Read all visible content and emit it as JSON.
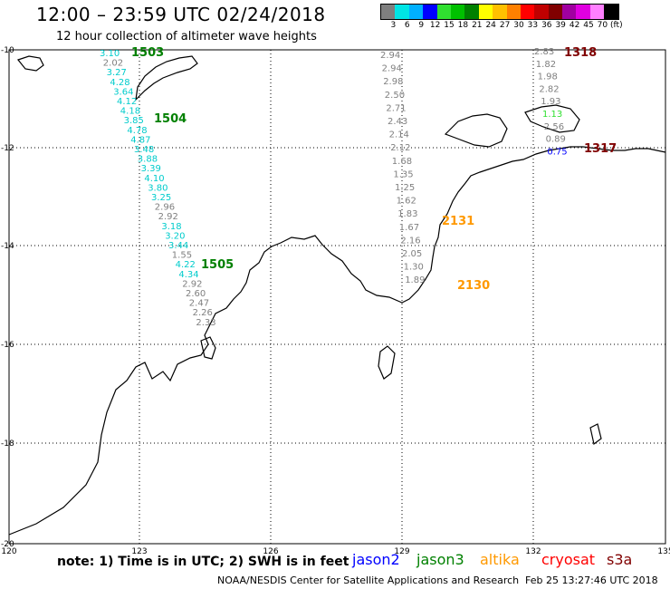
{
  "header": {
    "title": "12:00 – 23:59 UTC 02/24/2018",
    "subtitle": "12 hour collection of altimeter wave heights"
  },
  "legend": {
    "colors": [
      "#7f7f7f",
      "#00e5e5",
      "#00b0ff",
      "#0000ff",
      "#30e030",
      "#00c000",
      "#008000",
      "#ffff00",
      "#ffc000",
      "#ff8000",
      "#ff0000",
      "#c00000",
      "#800000",
      "#a000a0",
      "#e000e0",
      "#ff80ff",
      "#000000"
    ],
    "labels": [
      "3",
      "6",
      "9",
      "12",
      "15",
      "18",
      "21",
      "24",
      "27",
      "30",
      "33",
      "36",
      "39",
      "42",
      "45",
      "70",
      "(ft)"
    ]
  },
  "axes": {
    "lon_labels": [
      "120",
      "123",
      "126",
      "129",
      "132",
      "135"
    ],
    "lat_labels": [
      "-10",
      "-12",
      "-14",
      "-16",
      "-18",
      "-20"
    ]
  },
  "map": {
    "track_labels": [
      {
        "text": "1503",
        "color": "#008000"
      },
      {
        "text": "1504",
        "color": "#008000"
      },
      {
        "text": "1505",
        "color": "#008000"
      },
      {
        "text": "2131",
        "color": "#ff9900"
      },
      {
        "text": "2130",
        "color": "#ff9900"
      },
      {
        "text": "1318",
        "color": "#800000"
      },
      {
        "text": "1317",
        "color": "#800000"
      }
    ],
    "tracks": [
      {
        "name": "jason3-cyan",
        "color": "#00cccc",
        "values": [
          "3.10",
          "2.02",
          "3.27",
          "4.28",
          "3.64",
          "4.12",
          "4.18",
          "3.85",
          "4.78",
          "4.87",
          "3.48",
          "3.88",
          "3.39",
          "4.10",
          "3.80",
          "3.25",
          "2.96",
          "2.92",
          "3.18",
          "3.20",
          "3.44",
          "1.55",
          "4.22",
          "4.34",
          "2.92",
          "2.60",
          "2.47",
          "2.26",
          "2.33"
        ],
        "colors": [
          "#00cccc",
          "#7f7f7f",
          "#00cccc",
          "#00cccc",
          "#00cccc",
          "#00cccc",
          "#00cccc",
          "#00cccc",
          "#00cccc",
          "#00cccc",
          "#00cccc",
          "#00cccc",
          "#00cccc",
          "#00cccc",
          "#00cccc",
          "#00cccc",
          "#7f7f7f",
          "#7f7f7f",
          "#00cccc",
          "#00cccc",
          "#00cccc",
          "#7f7f7f",
          "#00cccc",
          "#00cccc",
          "#7f7f7f",
          "#7f7f7f",
          "#7f7f7f",
          "#7f7f7f",
          "#7f7f7f"
        ]
      },
      {
        "name": "altika-gray",
        "color": "#7f7f7f",
        "values": [
          "2.94",
          "2.94",
          "2.98",
          "2.50",
          "2.71",
          "2.43",
          "2.14",
          "2.12",
          "1.68",
          "1.35",
          "1.25",
          "1.62",
          "1.83",
          "1.67",
          "2.16",
          "2.05",
          "1.30",
          "1.89"
        ]
      },
      {
        "name": "s3a-gray",
        "color": "#7f7f7f",
        "values": [
          "2.83",
          "1.82",
          "1.98",
          "2.82",
          "1.93",
          "1.13",
          "2.56",
          "0.89",
          "0.75"
        ],
        "colors": [
          "#7f7f7f",
          "#7f7f7f",
          "#7f7f7f",
          "#7f7f7f",
          "#7f7f7f",
          "#30e030",
          "#7f7f7f",
          "#7f7f7f",
          "#0000ff"
        ]
      }
    ]
  },
  "footer": {
    "note": "note: 1) Time is in UTC; 2) SWH is in feet",
    "satellites": [
      {
        "name": "jason2",
        "color": "#0000ff"
      },
      {
        "name": "jason3",
        "color": "#008000"
      },
      {
        "name": "altika",
        "color": "#ff9900"
      },
      {
        "name": "cryosat",
        "color": "#ff0000"
      },
      {
        "name": "s3a",
        "color": "#800000"
      }
    ],
    "credit": "NOAA/NESDIS Center for Satellite Applications and Research",
    "date": "Feb 25 13:27:46 UTC 2018"
  }
}
